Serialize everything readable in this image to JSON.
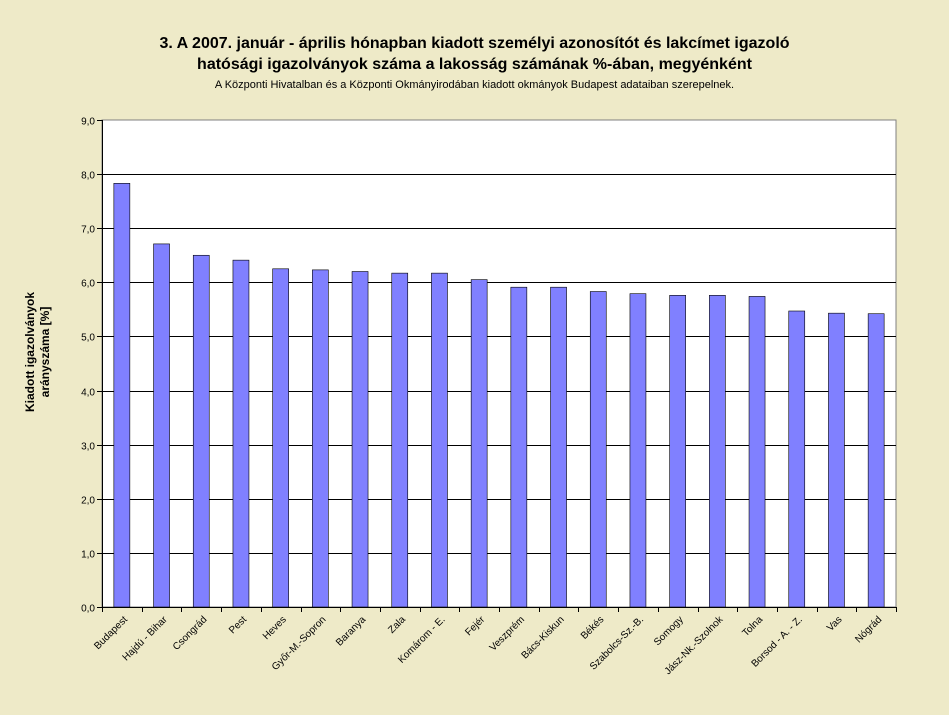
{
  "chart_data": {
    "type": "bar",
    "title_line1": "3. A 2007. január - április hónapban kiadott személyi azonosítót és lakcímet igazoló",
    "title_line2": "hatósági igazolványok száma a lakosság  számának %-ában, megyénként",
    "subtitle": "A Központi Hivatalban és a Központi Okmányirodában kiadott okmányok Budapest adataiban szerepelnek.",
    "ylabel_line1": "Kiadott igazolványok",
    "ylabel_line2": "arányszáma [%]",
    "ylim": [
      0,
      9
    ],
    "yticks": [
      "0,0",
      "1,0",
      "2,0",
      "3,0",
      "4,0",
      "5,0",
      "6,0",
      "7,0",
      "8,0",
      "9,0"
    ],
    "grid": true,
    "bar_color": "#8080ff",
    "categories": [
      "Budapest",
      "Hajdú - Bihar",
      "Csongrád",
      "Pest",
      "Heves",
      "Győr-M.-Sopron",
      "Baranya",
      "Zala",
      "Komárom - E.",
      "Fejér",
      "Veszprém",
      "Bács-Kiskun",
      "Békés",
      "Szabolcs-Sz.-B.",
      "Somogy",
      "Jász-Nk.-Szolnok",
      "Tolna",
      "Borsod - A. - Z.",
      "Vas",
      "Nógrád"
    ],
    "values": [
      7.83,
      6.71,
      6.5,
      6.41,
      6.25,
      6.23,
      6.2,
      6.17,
      6.17,
      6.05,
      5.91,
      5.91,
      5.83,
      5.79,
      5.76,
      5.76,
      5.74,
      5.47,
      5.43,
      5.42
    ]
  }
}
